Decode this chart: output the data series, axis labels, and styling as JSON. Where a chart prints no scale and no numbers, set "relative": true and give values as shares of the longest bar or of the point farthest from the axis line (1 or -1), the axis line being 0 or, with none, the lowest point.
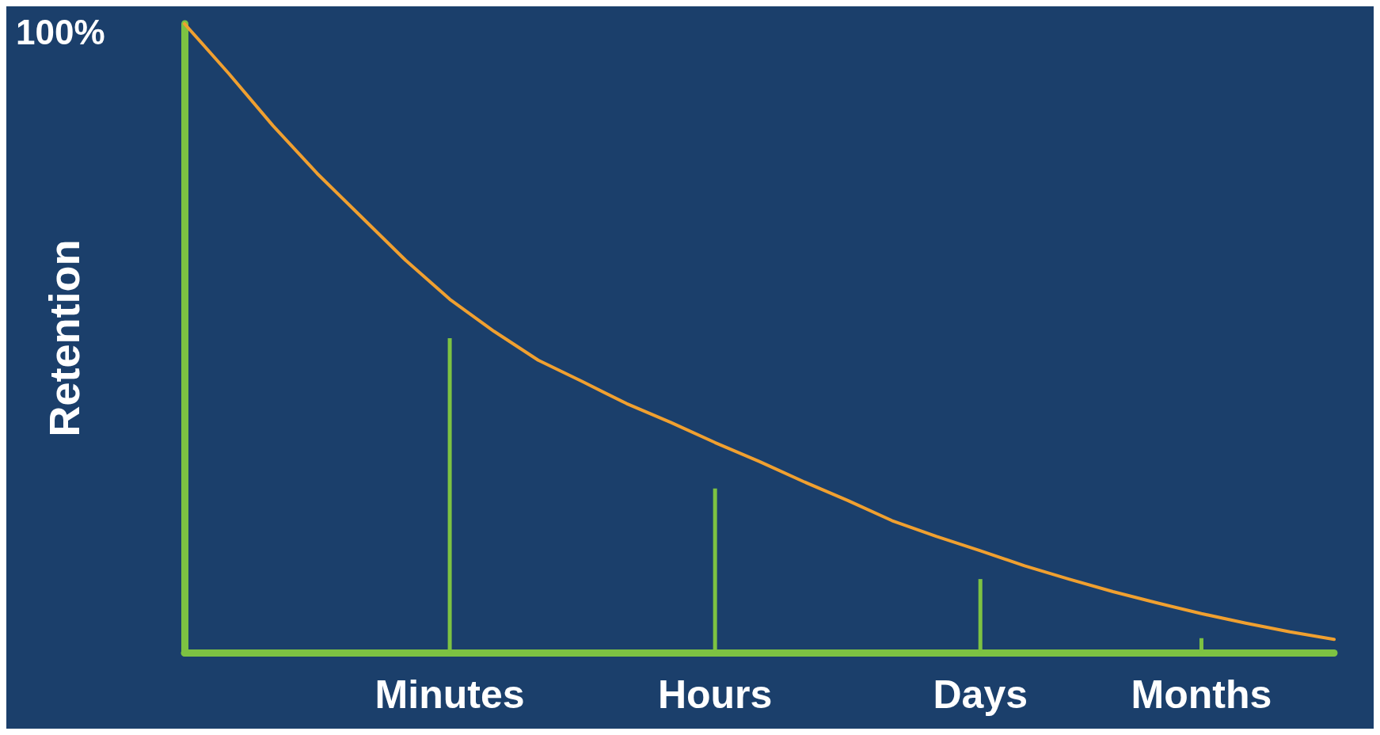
{
  "chart_data": {
    "type": "line",
    "ylabel": "Retention",
    "relative": true,
    "grid": false,
    "marker": "none",
    "tick_labels": "x",
    "annotations": [
      "100%"
    ],
    "categories": [
      null,
      null,
      null,
      null,
      null,
      null,
      "Minutes",
      null,
      null,
      null,
      null,
      null,
      "Hours",
      null,
      null,
      null,
      null,
      null,
      "Days",
      null,
      null,
      null,
      null,
      "Months",
      null,
      null,
      null
    ],
    "series": [
      {
        "color": "#f0a030",
        "values": [
          1.0,
          0.921,
          0.838,
          0.762,
          0.693,
          0.624,
          0.562,
          0.511,
          0.465,
          0.431,
          0.396,
          0.366,
          0.334,
          0.304,
          0.272,
          0.242,
          0.21,
          0.185,
          0.162,
          0.138,
          0.117,
          0.097,
          0.079,
          0.062,
          0.047,
          0.033,
          0.021
        ]
      },
      {
        "type": "bar",
        "color": "#7dc242",
        "values": [
          null,
          null,
          null,
          null,
          null,
          null,
          0.5,
          null,
          null,
          null,
          null,
          null,
          0.261,
          null,
          null,
          null,
          null,
          null,
          0.117,
          null,
          null,
          null,
          null,
          0.023,
          null,
          null,
          null
        ]
      }
    ]
  }
}
